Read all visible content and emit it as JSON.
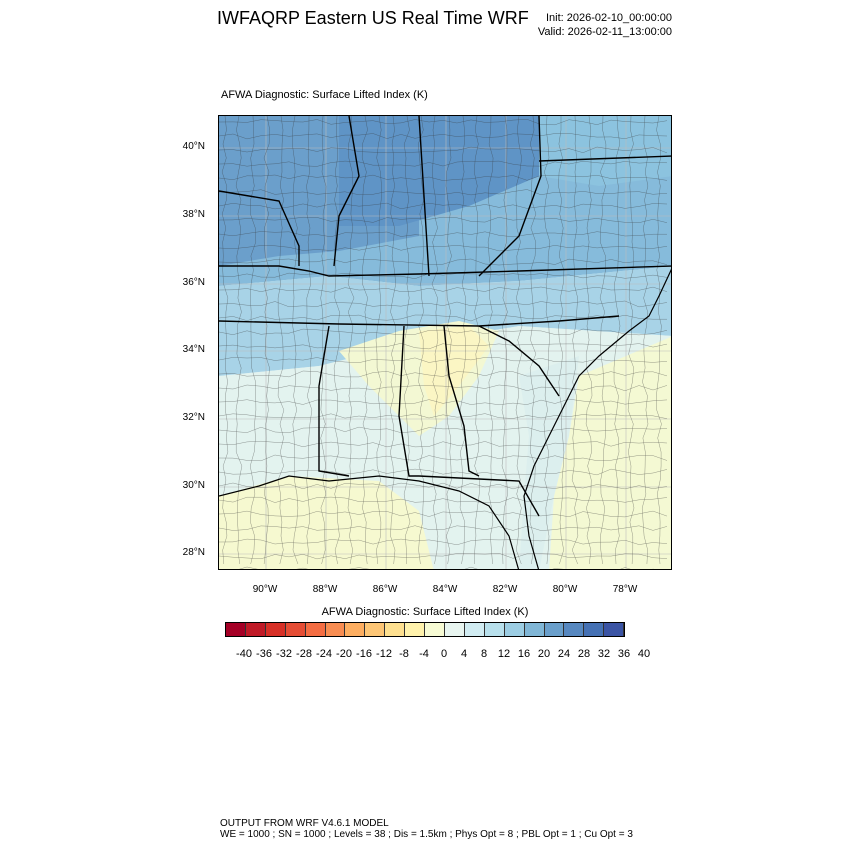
{
  "header": {
    "title": "IWFAQRP Eastern US Real Time WRF",
    "init": "Init: 2026-02-10_00:00:00",
    "valid": "Valid: 2026-02-11_13:00:00"
  },
  "plot": {
    "title": "AFWA Diagnostic: Surface Lifted Index   (K)",
    "lat_labels": [
      "40°N",
      "38°N",
      "36°N",
      "34°N",
      "32°N",
      "30°N",
      "28°N"
    ],
    "lon_labels": [
      "90°W",
      "88°W",
      "86°W",
      "84°W",
      "82°W",
      "80°W",
      "78°W"
    ]
  },
  "colorbar": {
    "title": "AFWA Diagnostic: Surface Lifted Index  (K)",
    "ticks": [
      "-40",
      "-36",
      "-32",
      "-28",
      "-24",
      "-20",
      "-16",
      "-12",
      "-8",
      "-4",
      "0",
      "4",
      "8",
      "12",
      "16",
      "20",
      "24",
      "28",
      "32",
      "36",
      "40"
    ],
    "colors": [
      "#a50026",
      "#c01a27",
      "#d73027",
      "#e54d35",
      "#f46d43",
      "#f88d52",
      "#fdae61",
      "#fdc676",
      "#fee090",
      "#fff2ac",
      "#f7fbd4",
      "#e8f5f0",
      "#d1ecf2",
      "#b8e0ec",
      "#9ccde3",
      "#80b6d6",
      "#6a9fcb",
      "#5788c0",
      "#4571b4",
      "#3b54a4"
    ]
  },
  "footer": {
    "line1": "OUTPUT FROM WRF V4.6.1 MODEL",
    "line2": "WE = 1000 ; SN = 1000 ; Levels = 38 ; Dis = 1.5km ; Phys Opt = 8 ; PBL Opt = 1 ; Cu Opt = 3"
  }
}
